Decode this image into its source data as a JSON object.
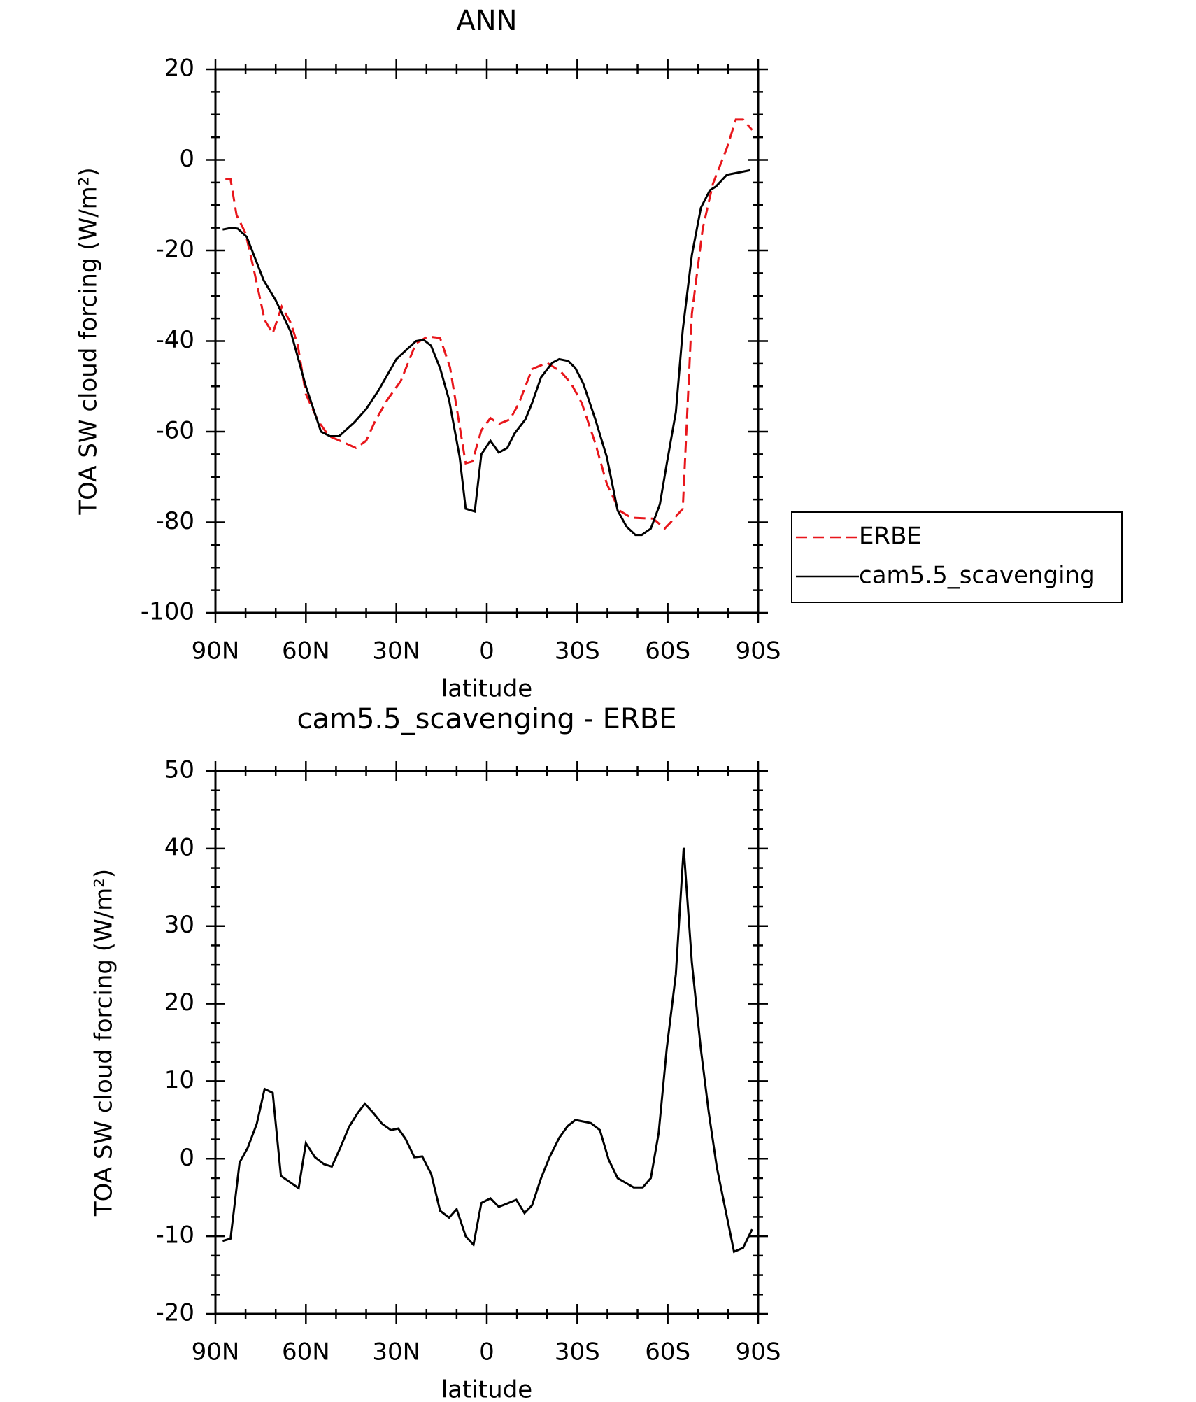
{
  "chart_data": [
    {
      "type": "line",
      "title": "ANN",
      "xlabel": "latitude",
      "ylabel": "TOA SW cloud forcing (W/m²)",
      "xlim": [
        90,
        -90
      ],
      "xticks": [
        {
          "value": 90,
          "label": "90N"
        },
        {
          "value": 60,
          "label": "60N"
        },
        {
          "value": 30,
          "label": "30N"
        },
        0,
        {
          "value": -30,
          "label": "30S"
        },
        {
          "value": -60,
          "label": "60S"
        },
        {
          "value": -90,
          "label": "90S"
        }
      ],
      "ylim": [
        -100,
        20
      ],
      "yticks": [
        -100,
        -80,
        -60,
        -40,
        -20,
        0,
        20
      ],
      "legend": "right",
      "series": [
        {
          "name": "ERBE",
          "color": "#e8161b",
          "dashed": true,
          "x": [
            86.7,
            85,
            83,
            80,
            77,
            73.7,
            71,
            68,
            65,
            62.7,
            60,
            56,
            52.3,
            48.7,
            43.4,
            40,
            37,
            33,
            28.5,
            23.5,
            19.6,
            15.5,
            12.2,
            10,
            7,
            4.8,
            1.8,
            -1.2,
            -4,
            -7.7,
            -10.7,
            -15,
            -20,
            -24.6,
            -28,
            -31.5,
            -36,
            -39.8,
            -44,
            -47.9,
            -55.2,
            -59,
            -61,
            -65,
            -68,
            -71.6,
            -75,
            -79.6,
            -82.6,
            -85,
            -88
          ],
          "values": [
            -4.3,
            -4.3,
            -12.2,
            -16.2,
            -25,
            -35.3,
            -38.3,
            -32.4,
            -36,
            -40.9,
            -51.7,
            -57.6,
            -61,
            -62,
            -63.6,
            -62,
            -57.6,
            -53,
            -48.8,
            -40.5,
            -39,
            -39.3,
            -45.8,
            -54.7,
            -67,
            -66.6,
            -59.7,
            -57,
            -58.3,
            -57.3,
            -53.7,
            -46.2,
            -44.8,
            -46.8,
            -49.4,
            -53.7,
            -62.6,
            -71.5,
            -77.4,
            -79,
            -79.2,
            -81.4,
            -80,
            -77,
            -34,
            -15.2,
            -5.3,
            2.6,
            8.9,
            8.9,
            6.6
          ]
        },
        {
          "name": "cam5.5_scavenging",
          "color": "#000000",
          "dashed": false,
          "x": [
            87.6,
            84.6,
            82.6,
            79.6,
            74,
            70,
            65,
            60,
            55,
            52,
            49,
            44,
            40,
            36,
            30,
            23.5,
            21,
            18.5,
            15.5,
            12.5,
            9,
            7,
            4,
            1.8,
            -1.2,
            -4,
            -6.8,
            -9.2,
            -12.8,
            -15,
            -18,
            -21.7,
            -24,
            -27,
            -29.4,
            -32,
            -36,
            -39.8,
            -43.4,
            -46.4,
            -49.3,
            -51.4,
            -54.4,
            -57.4,
            -59.7,
            -62.7,
            -65,
            -68,
            -71,
            -74,
            -76,
            -79.6,
            -87.3
          ],
          "values": [
            -15.4,
            -15,
            -15.2,
            -17,
            -26.6,
            -31,
            -38,
            -50,
            -60,
            -61,
            -61,
            -58,
            -55,
            -51,
            -44,
            -40,
            -39.7,
            -41,
            -46,
            -53,
            -65.6,
            -77,
            -77.6,
            -65,
            -62,
            -64.6,
            -63.6,
            -60.4,
            -57.3,
            -53.7,
            -48,
            -44.8,
            -44,
            -44.4,
            -46,
            -49.4,
            -57.3,
            -65.6,
            -77.4,
            -81,
            -82.8,
            -82.8,
            -81.4,
            -76,
            -67,
            -55.7,
            -37.5,
            -21,
            -10.6,
            -6.7,
            -5.9,
            -3.3,
            -2.3
          ]
        }
      ]
    },
    {
      "type": "line",
      "title": "cam5.5_scavenging - ERBE",
      "xlabel": "latitude",
      "ylabel": "TOA SW cloud forcing (W/m²)",
      "xlim": [
        90,
        -90
      ],
      "xticks": [
        {
          "value": 90,
          "label": "90N"
        },
        {
          "value": 60,
          "label": "60N"
        },
        {
          "value": 30,
          "label": "30N"
        },
        0,
        {
          "value": -30,
          "label": "30S"
        },
        {
          "value": -60,
          "label": "60S"
        },
        {
          "value": -90,
          "label": "90S"
        }
      ],
      "ylim": [
        -20,
        50
      ],
      "yticks": [
        -20,
        -10,
        0,
        10,
        20,
        30,
        40,
        50
      ],
      "series": [
        {
          "color": "#000000",
          "dashed": false,
          "x": [
            87.6,
            85,
            82,
            79.3,
            76.3,
            73.7,
            71,
            68.3,
            62.4,
            60,
            57,
            54,
            51.4,
            48.7,
            45.7,
            42.8,
            40.4,
            37.4,
            34.7,
            31.8,
            29.4,
            27,
            24,
            21.4,
            18.4,
            15.5,
            12.5,
            10,
            7,
            4.4,
            1.8,
            -1.2,
            -4,
            -9.8,
            -12.5,
            -15,
            -18,
            -20.8,
            -24,
            -26.8,
            -29.4,
            -32,
            -34.5,
            -37.5,
            -40.4,
            -43.4,
            -48.7,
            -51.7,
            -54.4,
            -57,
            -59.7,
            -62.7,
            -65.3,
            -68,
            -71,
            -73.6,
            -76.3,
            -82,
            -85,
            -88
          ],
          "values": [
            -10.6,
            -10.3,
            -0.5,
            1.4,
            4.5,
            9,
            8.5,
            -2.2,
            -3.8,
            2,
            0.2,
            -0.7,
            -1,
            1.3,
            4.1,
            5.9,
            7.1,
            5.8,
            4.5,
            3.7,
            3.9,
            2.6,
            0.2,
            0.3,
            -2,
            -6.7,
            -7.6,
            -6.5,
            -10,
            -11.1,
            -5.7,
            -5.1,
            -6.2,
            -5.3,
            -7,
            -6,
            -2.5,
            0.2,
            2.7,
            4.2,
            5,
            4.8,
            4.6,
            3.7,
            -0.1,
            -2.5,
            -3.7,
            -3.7,
            -2.5,
            3.3,
            14.3,
            23.8,
            40.1,
            25.3,
            14.1,
            6,
            -1.1,
            -12,
            -11.5,
            -9.1
          ]
        }
      ]
    }
  ]
}
